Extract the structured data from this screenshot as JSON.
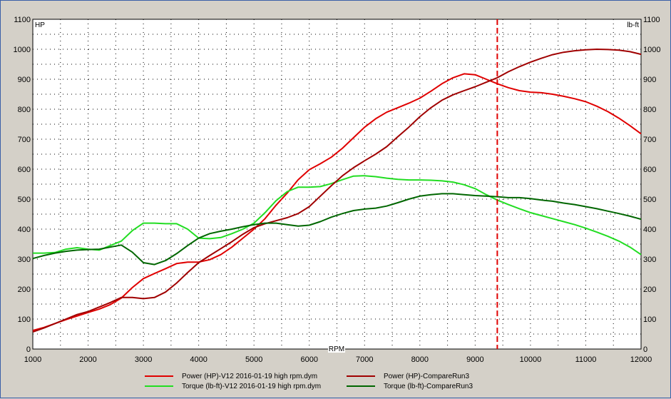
{
  "chart_data": {
    "type": "line",
    "title": "",
    "xlabel": "RPM",
    "ylabel_left": "HP",
    "ylabel_right": "lb-ft",
    "xlim": [
      1000,
      12000
    ],
    "ylim": [
      0,
      1100
    ],
    "x_ticks": [
      1000,
      2000,
      3000,
      4000,
      5000,
      6000,
      7000,
      8000,
      9000,
      10000,
      11000,
      12000
    ],
    "y_ticks": [
      0,
      100,
      200,
      300,
      400,
      500,
      600,
      700,
      800,
      900,
      1000,
      1100
    ],
    "grid": true,
    "legend_placement": "bottom",
    "cursor": {
      "x": 9400,
      "color": "#e00000",
      "style": "dashed"
    },
    "series": [
      {
        "name": "Power (HP)-V12 2016-01-19 high rpm.dym",
        "color": "#e00000",
        "x": [
          1000,
          1200,
          1400,
          1600,
          1800,
          2000,
          2200,
          2400,
          2600,
          2800,
          3000,
          3200,
          3400,
          3600,
          3800,
          4000,
          4200,
          4400,
          4600,
          4800,
          5000,
          5200,
          5400,
          5600,
          5800,
          6000,
          6200,
          6400,
          6600,
          6800,
          7000,
          7200,
          7400,
          7600,
          7800,
          8000,
          8200,
          8400,
          8600,
          8800,
          9000,
          9200,
          9400,
          9600,
          9800,
          10000,
          10200,
          10400,
          10600,
          10800,
          11000,
          11200,
          11400,
          11600,
          11800,
          12000
        ],
        "y": [
          62,
          72,
          85,
          98,
          110,
          122,
          133,
          148,
          170,
          205,
          235,
          252,
          268,
          285,
          290,
          290,
          298,
          315,
          340,
          370,
          400,
          435,
          480,
          520,
          565,
          598,
          618,
          640,
          670,
          705,
          740,
          768,
          790,
          805,
          820,
          837,
          860,
          885,
          905,
          918,
          915,
          900,
          885,
          872,
          862,
          857,
          855,
          850,
          843,
          835,
          825,
          810,
          792,
          770,
          745,
          718
        ]
      },
      {
        "name": "Torque (lb-ft)-V12 2016-01-19 high rpm.dym",
        "color": "#22dd22",
        "x": [
          1000,
          1200,
          1400,
          1600,
          1800,
          2000,
          2200,
          2400,
          2600,
          2800,
          3000,
          3200,
          3400,
          3600,
          3800,
          4000,
          4200,
          4400,
          4600,
          4800,
          5000,
          5200,
          5400,
          5600,
          5800,
          6000,
          6200,
          6400,
          6600,
          6800,
          7000,
          7200,
          7400,
          7600,
          7800,
          8000,
          8200,
          8400,
          8600,
          8800,
          9000,
          9200,
          9400,
          9600,
          9800,
          10000,
          10200,
          10400,
          10600,
          10800,
          11000,
          11200,
          11400,
          11600,
          11800,
          12000
        ],
        "y": [
          320,
          320,
          322,
          333,
          338,
          333,
          330,
          345,
          360,
          395,
          420,
          420,
          418,
          418,
          400,
          370,
          368,
          372,
          385,
          400,
          420,
          455,
          495,
          525,
          540,
          540,
          542,
          552,
          565,
          577,
          578,
          575,
          570,
          566,
          564,
          564,
          563,
          561,
          557,
          548,
          535,
          515,
          497,
          482,
          468,
          455,
          445,
          435,
          425,
          415,
          403,
          390,
          376,
          360,
          340,
          315
        ]
      },
      {
        "name": "Power (HP)-CompareRun3",
        "color": "#a00000",
        "x": [
          1000,
          1200,
          1400,
          1600,
          1800,
          2000,
          2200,
          2400,
          2600,
          2800,
          3000,
          3200,
          3400,
          3600,
          3800,
          4000,
          4200,
          4400,
          4600,
          4800,
          5000,
          5200,
          5400,
          5600,
          5800,
          6000,
          6200,
          6400,
          6600,
          6800,
          7000,
          7200,
          7400,
          7600,
          7800,
          8000,
          8200,
          8400,
          8600,
          8800,
          9000,
          9200,
          9400,
          9600,
          9800,
          10000,
          10200,
          10400,
          10600,
          10800,
          11000,
          11200,
          11400,
          11600,
          11800,
          12000
        ],
        "y": [
          57,
          70,
          85,
          100,
          115,
          125,
          140,
          155,
          172,
          172,
          168,
          172,
          190,
          220,
          255,
          288,
          312,
          335,
          358,
          383,
          405,
          418,
          428,
          438,
          452,
          475,
          510,
          545,
          578,
          605,
          628,
          650,
          675,
          708,
          740,
          775,
          805,
          830,
          848,
          862,
          875,
          890,
          905,
          925,
          942,
          957,
          970,
          982,
          990,
          995,
          998,
          1000,
          999,
          997,
          992,
          983
        ]
      },
      {
        "name": "Torque (lb-ft)-CompareRun3",
        "color": "#006600",
        "x": [
          1000,
          1200,
          1400,
          1600,
          1800,
          2000,
          2200,
          2400,
          2600,
          2800,
          3000,
          3200,
          3400,
          3600,
          3800,
          4000,
          4200,
          4400,
          4600,
          4800,
          5000,
          5200,
          5400,
          5600,
          5800,
          6000,
          6200,
          6400,
          6600,
          6800,
          7000,
          7200,
          7400,
          7600,
          7800,
          8000,
          8200,
          8400,
          8600,
          8800,
          9000,
          9200,
          9400,
          9600,
          9800,
          10000,
          10200,
          10400,
          10600,
          10800,
          11000,
          11200,
          11400,
          11600,
          11800,
          12000
        ],
        "y": [
          302,
          312,
          320,
          326,
          330,
          332,
          333,
          340,
          347,
          323,
          288,
          282,
          295,
          318,
          345,
          370,
          385,
          393,
          400,
          408,
          415,
          420,
          420,
          415,
          410,
          413,
          425,
          440,
          452,
          462,
          467,
          470,
          477,
          488,
          500,
          510,
          515,
          518,
          518,
          515,
          512,
          510,
          508,
          505,
          505,
          502,
          497,
          493,
          487,
          482,
          475,
          468,
          460,
          452,
          443,
          433
        ]
      }
    ]
  }
}
